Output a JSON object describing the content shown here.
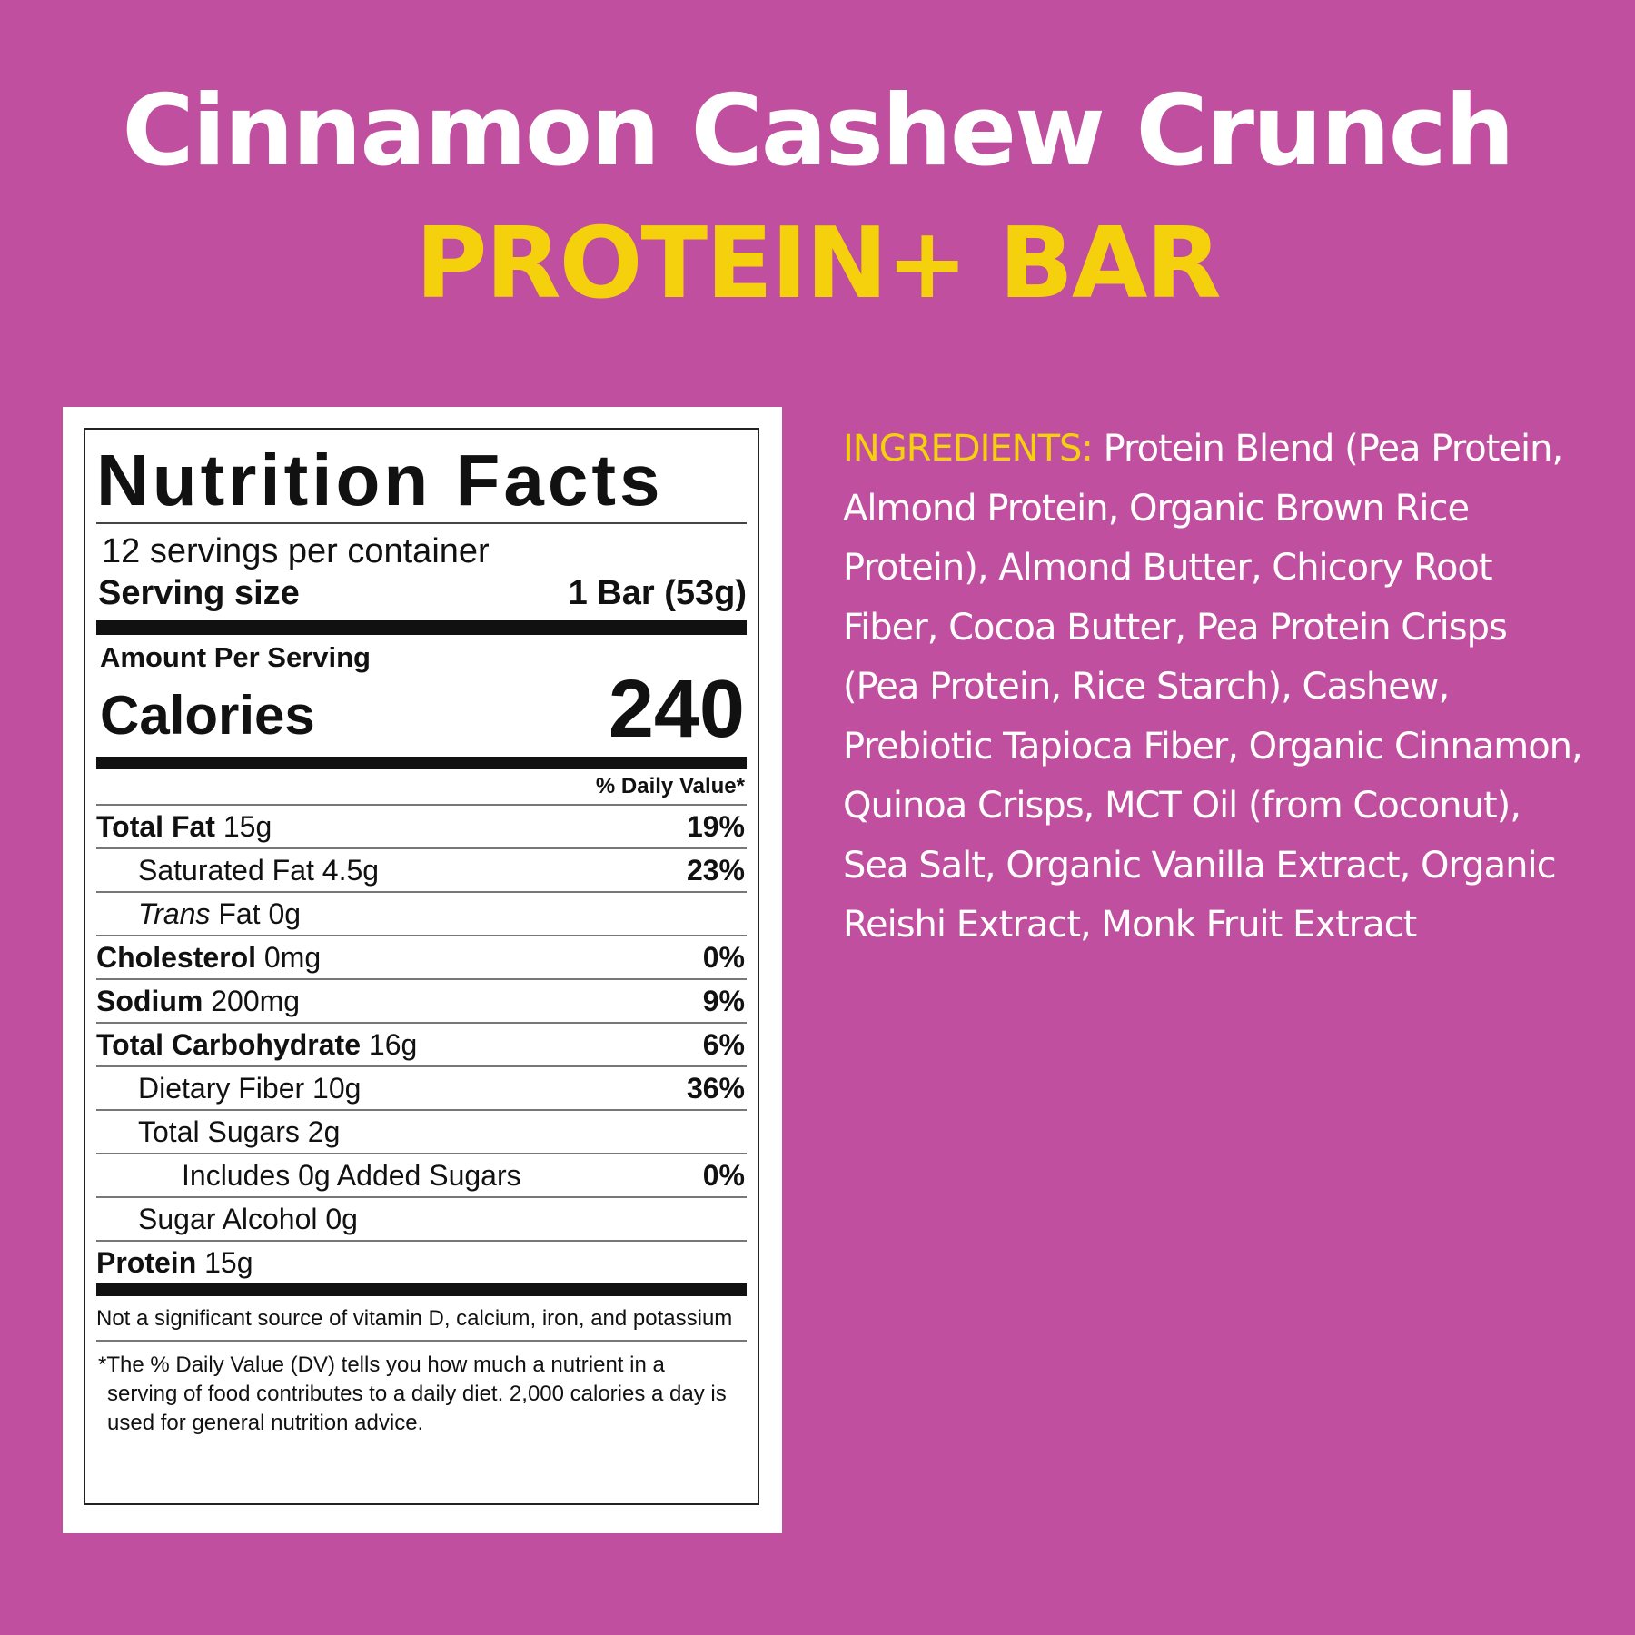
{
  "header": {
    "title": "Cinnamon Cashew Crunch",
    "subtitle": "PROTEIN+ BAR"
  },
  "nutrition": {
    "heading": "Nutrition Facts",
    "servings": "12 servings per container",
    "serving_size_label": "Serving size",
    "serving_size": "1 Bar (53g)",
    "amount_per_serving": "Amount Per Serving",
    "calories_label": "Calories",
    "calories": 240,
    "dv_header": "% Daily Value*",
    "rows": [
      {
        "name": "Total Fat",
        "amount": "15g",
        "dv": "19%"
      },
      {
        "name": "Saturated Fat",
        "amount": "4.5g",
        "dv": "23%"
      },
      {
        "name_italic": "Trans",
        "name": "Fat",
        "amount": "0g"
      },
      {
        "name": "Cholesterol",
        "amount": "0mg",
        "dv": "0%"
      },
      {
        "name": "Sodium",
        "amount": "200mg",
        "dv": "9%"
      },
      {
        "name": "Total Carbohydrate",
        "amount": "16g",
        "dv": "6%"
      },
      {
        "name": "Dietary Fiber",
        "amount": "10g",
        "dv": "36%"
      },
      {
        "name": "Total Sugars",
        "amount": "2g"
      },
      {
        "name": "Includes 0g Added Sugars",
        "dv": "0%"
      },
      {
        "name": "Sugar Alcohol",
        "amount": "0g"
      },
      {
        "name": "Protein",
        "amount": "15g"
      }
    ],
    "footnote_vitamins": "Not a significant source of vitamin D, calcium, iron, and potassium",
    "footnote_dv": "*The % Daily Value (DV) tells you how much a nutrient in a serving of food contributes to a daily diet. 2,000 calories a day is used for general nutrition advice."
  },
  "ingredients": {
    "label": "INGREDIENTS:",
    "text": "Protein Blend (Pea Protein, Almond Protein, Organic Brown Rice Protein), Almond Butter, Chicory Root Fiber, Cocoa Butter, Pea Protein Crisps (Pea Protein, Rice Starch), Cashew, Prebiotic Tapioca Fiber, Organic Cinnamon, Quinoa Crisps, MCT Oil (from Coconut), Sea Salt, Organic Vanilla Extract, Organic Reishi Extract, Monk Fruit Extract"
  }
}
